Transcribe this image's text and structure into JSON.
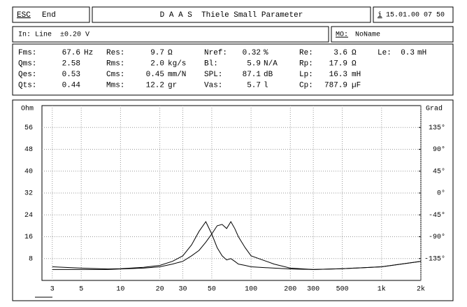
{
  "top_bar": {
    "esc_key": "ESC",
    "esc_action": "End",
    "title": "D A A S  Thiele Small Parameter",
    "info_key": "i",
    "datetime": "15.01.00 07 50"
  },
  "input_bar": {
    "input": "In: Line",
    "level": "±0.20 V",
    "model_key": "MO:",
    "model": "NoName"
  },
  "parameters": [
    [
      [
        "Fms:",
        "67.6",
        "Hz"
      ],
      [
        "Res:",
        "9.7",
        "Ω"
      ],
      [
        "Nref:",
        "0.32",
        "%"
      ],
      [
        "Re:",
        "3.6",
        "Ω"
      ],
      [
        "Le:",
        "0.3",
        "mH"
      ]
    ],
    [
      [
        "Qms:",
        "2.58",
        ""
      ],
      [
        "Rms:",
        "2.0",
        "kg/s"
      ],
      [
        "Bl:",
        "5.9",
        "N/A"
      ],
      [
        "Rp:",
        "17.9",
        "Ω"
      ]
    ],
    [
      [
        "Qes:",
        "0.53",
        ""
      ],
      [
        "Cms:",
        "0.45",
        "mm/N"
      ],
      [
        "SPL:",
        "87.1",
        "dB"
      ],
      [
        "Lp:",
        "16.3",
        "mH"
      ]
    ],
    [
      [
        "Qts:",
        "0.44",
        ""
      ],
      [
        "Mms:",
        "12.2",
        "gr"
      ],
      [
        "Vas:",
        "5.7",
        "l"
      ],
      [
        "Cp:",
        "787.9",
        "µF"
      ]
    ]
  ],
  "chart_data": {
    "type": "line",
    "y_label": "Ohm",
    "y2_label": "Grad",
    "log_x": true,
    "grid": true,
    "x": [
      3,
      5,
      8,
      10,
      15,
      20,
      25,
      30,
      35,
      40,
      45,
      50,
      55,
      60,
      65,
      70,
      75,
      80,
      90,
      100,
      150,
      200,
      300,
      500,
      1000,
      2000
    ],
    "xlim": [
      2.5,
      2000
    ],
    "xticks": [
      3,
      5,
      10,
      20,
      30,
      50,
      100,
      200,
      300,
      500,
      {
        "value": 1000,
        "label": "1k"
      },
      {
        "value": 2000,
        "label": "2k"
      }
    ],
    "ylim": [
      0,
      64
    ],
    "yticks": [
      8,
      16,
      24,
      32,
      40,
      48,
      56
    ],
    "y2lim": [
      -180,
      180
    ],
    "y2ticks": [
      {
        "value": 135,
        "label": "135°"
      },
      {
        "value": 90,
        "label": "90°"
      },
      {
        "value": 45,
        "label": "45°"
      },
      {
        "value": 0,
        "label": "0°"
      },
      {
        "value": -45,
        "label": "-45°"
      },
      {
        "value": -90,
        "label": "-90°"
      },
      {
        "value": -135,
        "label": "-135°"
      }
    ],
    "series": [
      {
        "color": "#000000",
        "values": [
          5,
          4.5,
          4.2,
          4.3,
          4.8,
          5.5,
          7,
          9,
          13,
          18,
          21.5,
          17,
          12,
          9,
          7.5,
          8,
          7,
          6,
          5.5,
          5,
          4.5,
          4.2,
          4.0,
          4.3,
          5,
          7
        ]
      },
      {
        "color": "#000000",
        "values": [
          4,
          4,
          4,
          4.2,
          4.5,
          5,
          6,
          7,
          9,
          11,
          14,
          17,
          20,
          20.5,
          19,
          21.5,
          19,
          16,
          12,
          9,
          6,
          4.5,
          4,
          4.3,
          5,
          7
        ]
      }
    ]
  }
}
